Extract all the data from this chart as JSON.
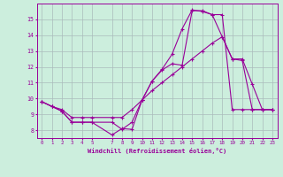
{
  "xlabel": "Windchill (Refroidissement éolien,°C)",
  "background_color": "#cceedd",
  "grid_color": "#aabbbb",
  "line_color": "#990099",
  "ylim": [
    7.5,
    16.0
  ],
  "xlim": [
    -0.5,
    23.5
  ],
  "yticks": [
    8,
    9,
    10,
    11,
    12,
    13,
    14,
    15
  ],
  "xticks": [
    0,
    1,
    2,
    3,
    4,
    5,
    7,
    8,
    9,
    10,
    11,
    12,
    13,
    14,
    15,
    16,
    17,
    18,
    19,
    20,
    21,
    22,
    23
  ],
  "line1_x": [
    0,
    1,
    2,
    3,
    4,
    5,
    7,
    8,
    9,
    10,
    11,
    12,
    13,
    14,
    15,
    16,
    17,
    18,
    19,
    20,
    21,
    22,
    23
  ],
  "line1_y": [
    9.8,
    9.5,
    9.2,
    8.5,
    8.5,
    8.5,
    8.5,
    8.05,
    8.5,
    9.9,
    11.1,
    11.8,
    12.2,
    12.1,
    15.55,
    15.55,
    15.3,
    15.3,
    9.3,
    9.3,
    9.3,
    9.3,
    9.3
  ],
  "line2_x": [
    0,
    1,
    2,
    3,
    4,
    5,
    7,
    8,
    9,
    10,
    11,
    12,
    13,
    14,
    15,
    16,
    17,
    18,
    19,
    20,
    21,
    22,
    23
  ],
  "line2_y": [
    9.8,
    9.5,
    9.2,
    8.5,
    8.5,
    8.5,
    7.7,
    8.1,
    8.05,
    9.9,
    11.1,
    11.85,
    12.8,
    14.4,
    15.6,
    15.5,
    15.3,
    13.9,
    12.5,
    12.5,
    10.9,
    9.3,
    9.3
  ],
  "line3_x": [
    0,
    1,
    2,
    3,
    4,
    5,
    7,
    8,
    9,
    10,
    11,
    12,
    13,
    14,
    15,
    16,
    17,
    18,
    19,
    20,
    21,
    22,
    23
  ],
  "line3_y": [
    9.8,
    9.5,
    9.3,
    8.8,
    8.8,
    8.8,
    8.8,
    8.8,
    9.3,
    9.9,
    10.5,
    11.0,
    11.5,
    12.0,
    12.5,
    13.0,
    13.5,
    13.9,
    12.5,
    12.4,
    9.3,
    9.3,
    9.3
  ]
}
